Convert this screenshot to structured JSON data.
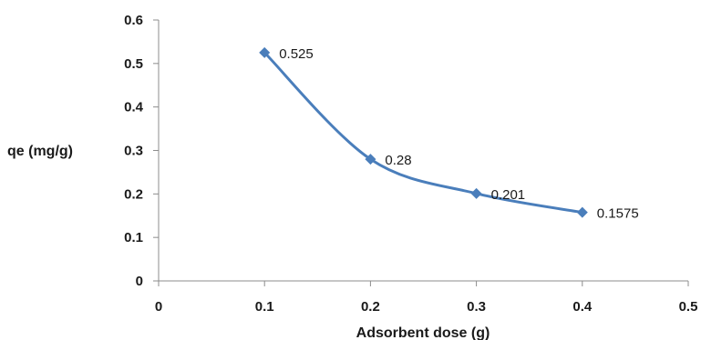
{
  "chart_data": {
    "type": "line",
    "title": "",
    "xlabel": "Adsorbent  dose (g)",
    "ylabel": "qe (mg/g)",
    "xlim": [
      0,
      0.5
    ],
    "ylim": [
      0,
      0.6
    ],
    "x_ticks": [
      "0",
      "0.1",
      "0.2",
      "0.3",
      "0.4",
      "0.5"
    ],
    "y_ticks": [
      "0",
      "0.1",
      "0.2",
      "0.3",
      "0.4",
      "0.5",
      "0.6"
    ],
    "grid": false,
    "smooth": true,
    "series": [
      {
        "x": [
          0.1,
          0.2,
          0.3,
          0.4
        ],
        "y": [
          0.525,
          0.28,
          0.201,
          0.1575
        ],
        "labels": [
          "0.525",
          "0.28",
          "0.201",
          "0.1575"
        ],
        "color": "#4a7ebb",
        "marker": "diamond"
      }
    ]
  }
}
